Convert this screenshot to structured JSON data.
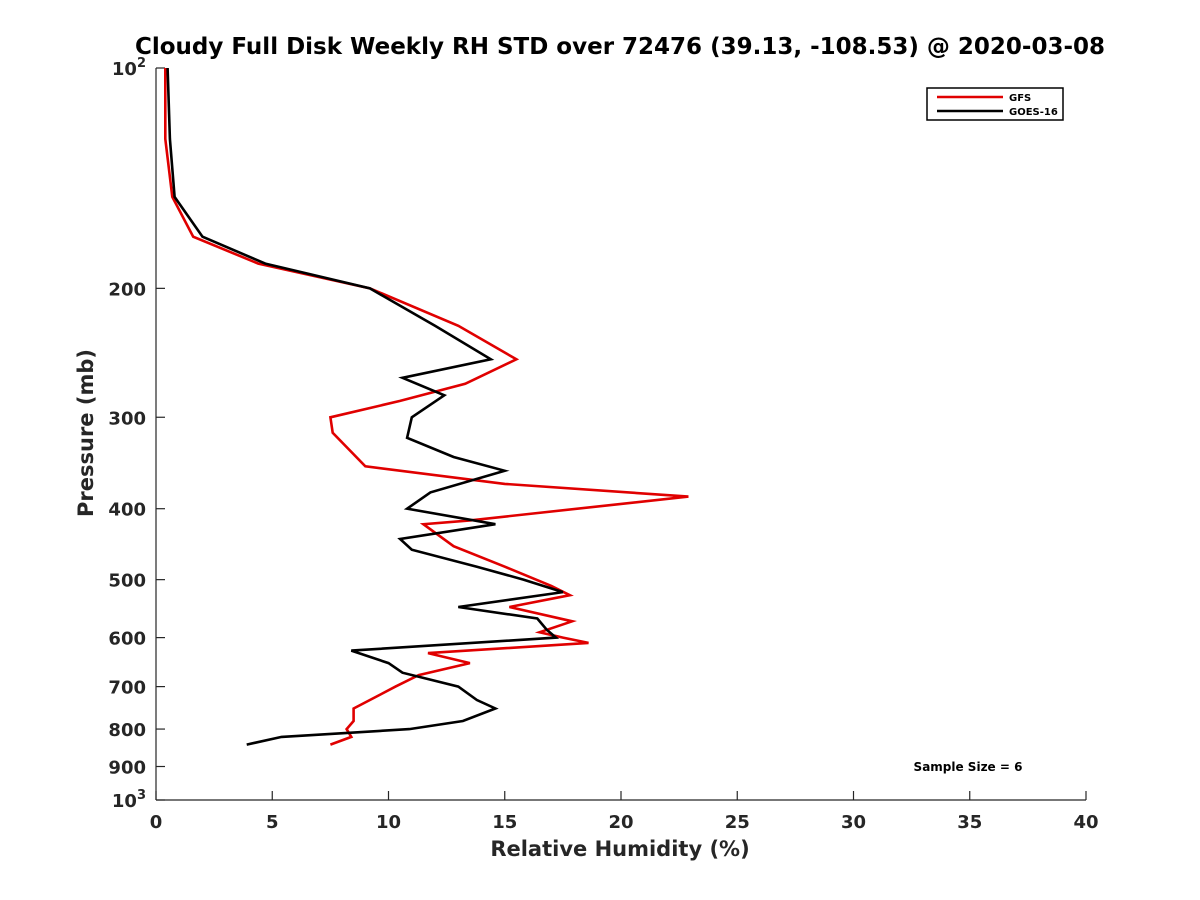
{
  "chart_data": {
    "type": "line",
    "title": "Cloudy Full Disk Weekly RH STD over 72476 (39.13, -108.53) @ 2020-03-08",
    "xlabel": "Relative Humidity (%)",
    "ylabel": "Pressure (mb)",
    "xlim": [
      0,
      40
    ],
    "ylim": [
      100,
      1000
    ],
    "y_scale": "log",
    "y_reversed": true,
    "grid": false,
    "legend_position": "top-right",
    "x_ticks": [
      "0",
      "5",
      "10",
      "15",
      "20",
      "25",
      "30",
      "35",
      "40"
    ],
    "y_ticks": [
      {
        "value": 100,
        "base": "10",
        "exp": "2"
      },
      {
        "value": 200,
        "label": "200"
      },
      {
        "value": 300,
        "label": "300"
      },
      {
        "value": 400,
        "label": "400"
      },
      {
        "value": 500,
        "label": "500"
      },
      {
        "value": 600,
        "label": "600"
      },
      {
        "value": 700,
        "label": "700"
      },
      {
        "value": 800,
        "label": "800"
      },
      {
        "value": 900,
        "label": "900"
      },
      {
        "value": 1000,
        "base": "10",
        "exp": "3"
      }
    ],
    "series": [
      {
        "name": "GFS",
        "color": "#e00000",
        "points": [
          [
            0.4,
            100
          ],
          [
            0.4,
            125
          ],
          [
            0.7,
            150
          ],
          [
            1.6,
            170
          ],
          [
            4.4,
            185
          ],
          [
            9.2,
            200
          ],
          [
            13,
            225
          ],
          [
            15.5,
            250
          ],
          [
            13.3,
            270
          ],
          [
            10.5,
            285
          ],
          [
            7.5,
            300
          ],
          [
            7.6,
            315
          ],
          [
            9,
            350
          ],
          [
            15,
            370
          ],
          [
            22.9,
            385
          ],
          [
            13.5,
            415
          ],
          [
            11.5,
            420
          ],
          [
            12.8,
            450
          ],
          [
            15,
            480
          ],
          [
            17,
            510
          ],
          [
            17.8,
            525
          ],
          [
            15.2,
            545
          ],
          [
            17.9,
            570
          ],
          [
            16.5,
            590
          ],
          [
            17.5,
            600
          ],
          [
            18.6,
            610
          ],
          [
            11.7,
            630
          ],
          [
            13.5,
            650
          ],
          [
            11.3,
            675
          ],
          [
            10.3,
            700
          ],
          [
            9.2,
            730
          ],
          [
            8.5,
            750
          ],
          [
            8.5,
            780
          ],
          [
            8.2,
            800
          ],
          [
            8.4,
            820
          ],
          [
            7.5,
            840
          ]
        ]
      },
      {
        "name": "GOES-16",
        "color": "#000000",
        "points": [
          [
            0.5,
            100
          ],
          [
            0.6,
            125
          ],
          [
            0.8,
            150
          ],
          [
            2,
            170
          ],
          [
            4.7,
            185
          ],
          [
            9.2,
            200
          ],
          [
            12,
            225
          ],
          [
            14.4,
            250
          ],
          [
            10.6,
            265
          ],
          [
            12.4,
            280
          ],
          [
            11,
            300
          ],
          [
            10.8,
            320
          ],
          [
            12.8,
            340
          ],
          [
            15,
            355
          ],
          [
            11.8,
            380
          ],
          [
            10.8,
            400
          ],
          [
            14.6,
            420
          ],
          [
            10.5,
            440
          ],
          [
            11,
            455
          ],
          [
            13.8,
            480
          ],
          [
            15.8,
            500
          ],
          [
            17.5,
            520
          ],
          [
            13,
            545
          ],
          [
            16.4,
            565
          ],
          [
            16.8,
            585
          ],
          [
            17.2,
            600
          ],
          [
            8.4,
            625
          ],
          [
            10,
            650
          ],
          [
            10.6,
            670
          ],
          [
            13,
            700
          ],
          [
            13.8,
            730
          ],
          [
            14.6,
            750
          ],
          [
            13.2,
            780
          ],
          [
            10.9,
            800
          ],
          [
            5.4,
            820
          ],
          [
            3.9,
            840
          ]
        ]
      }
    ],
    "annotations": [
      {
        "text": "Sample Size = 6"
      }
    ]
  }
}
